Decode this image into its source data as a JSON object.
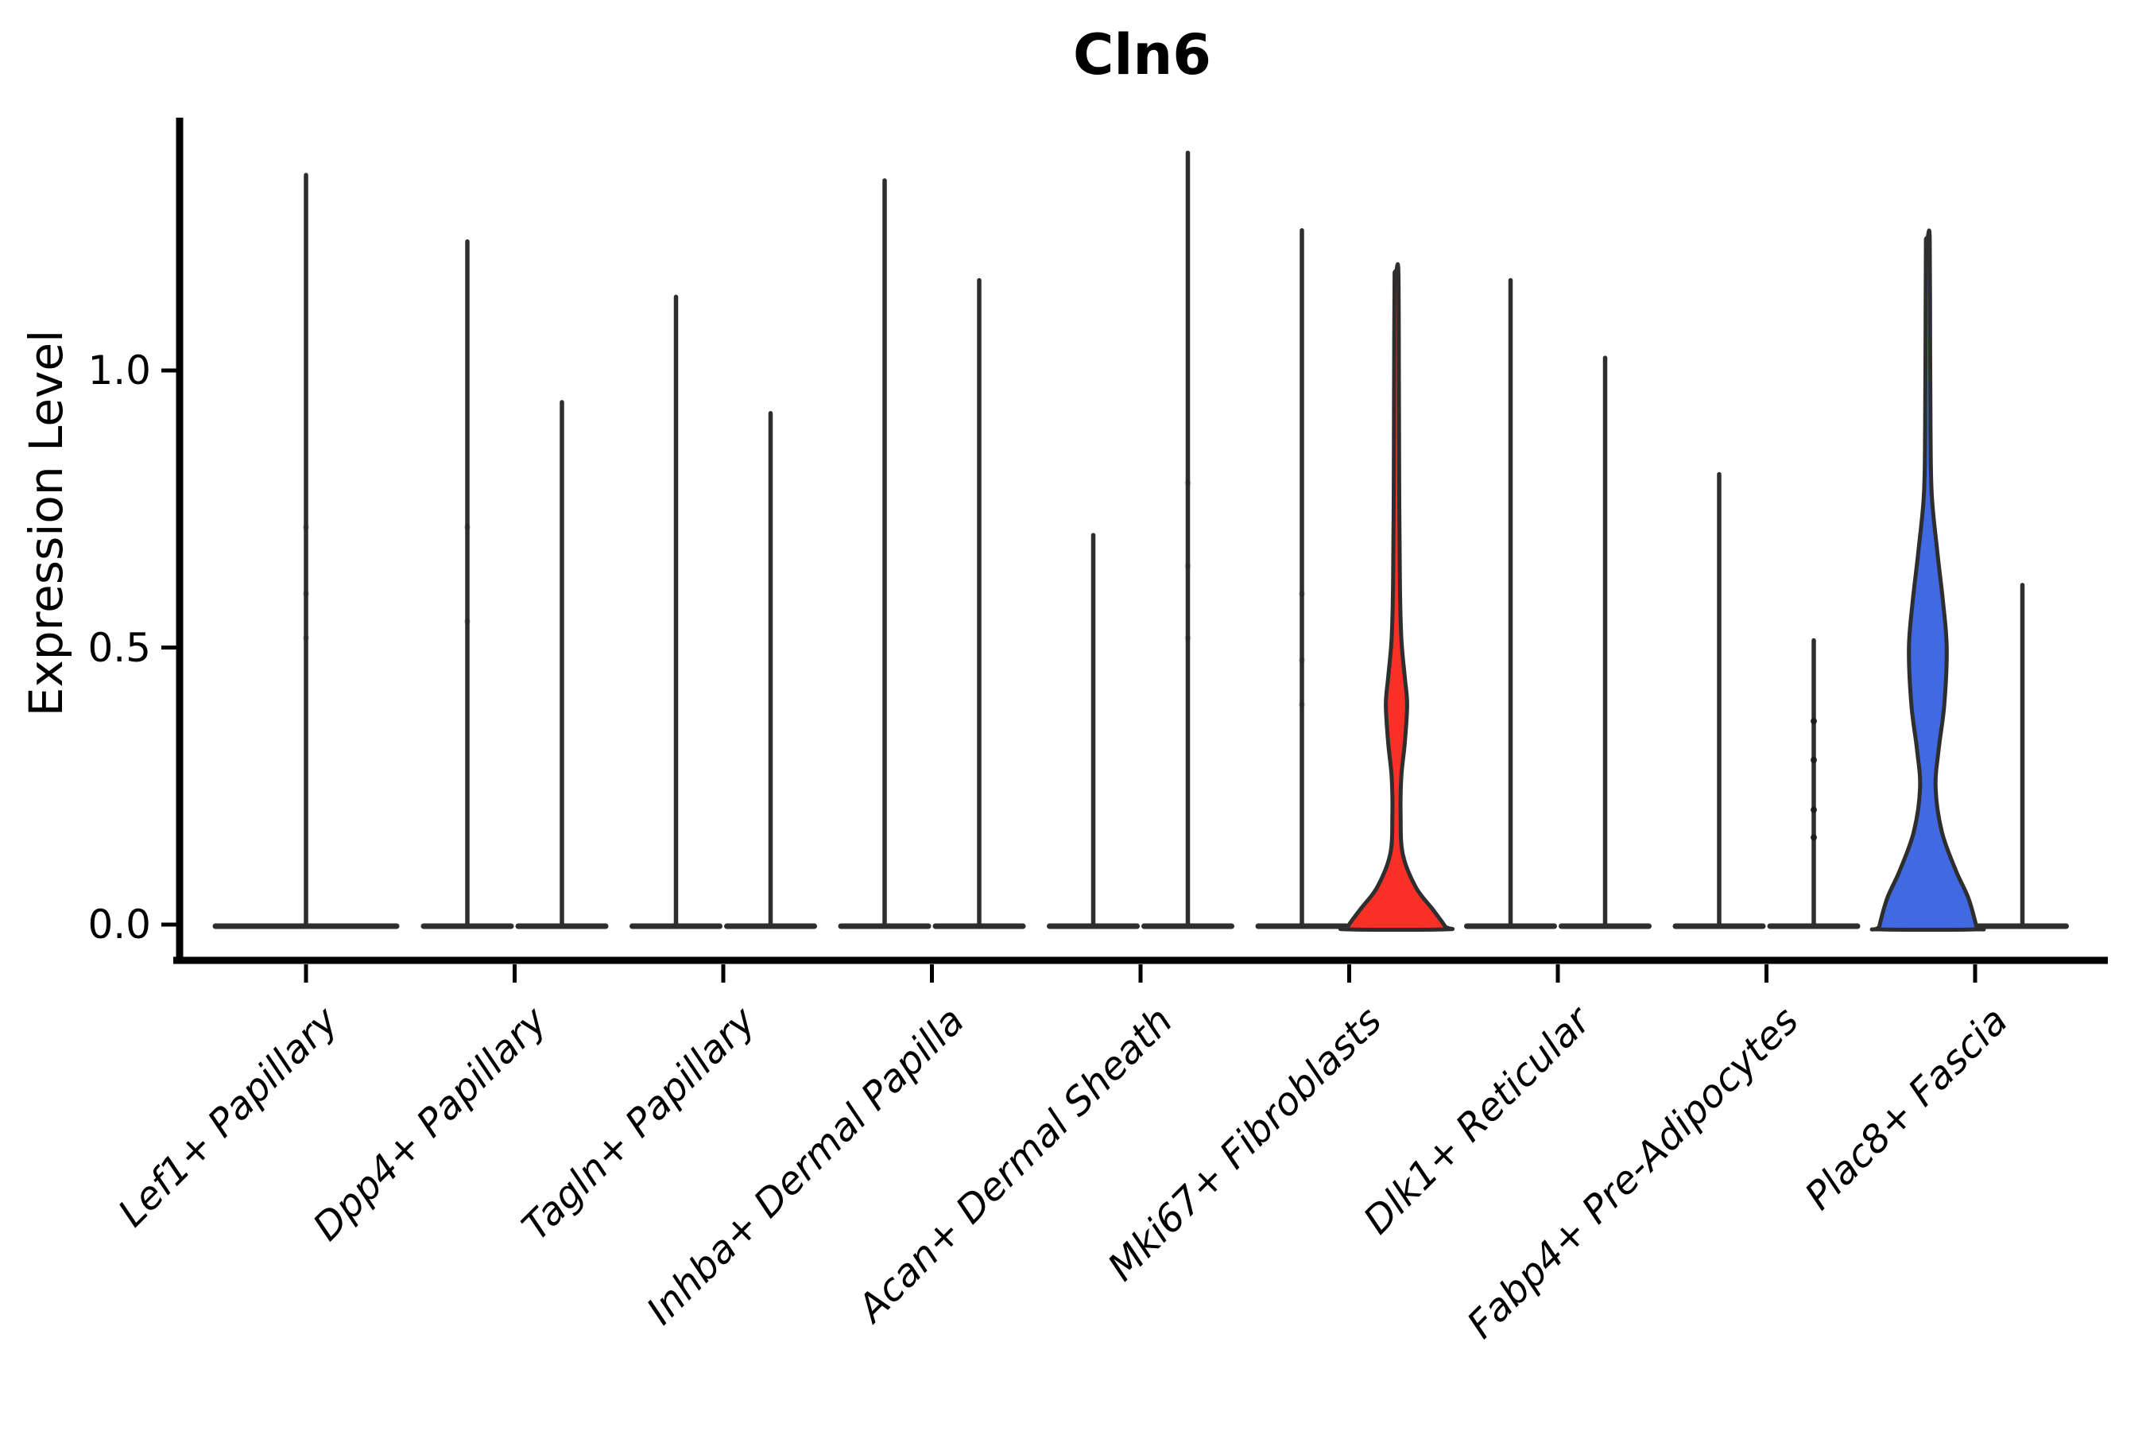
{
  "title": "Cln6",
  "axes": {
    "ylabel": "Expression Level",
    "ytick_labels": [
      "0.0",
      "0.5",
      "1.0"
    ],
    "ytick_values": [
      0.0,
      0.5,
      1.0
    ]
  },
  "colors": {
    "red_fill": "#F93026",
    "blue_fill": "#4169E1",
    "violin_stroke": "#2E2E2E",
    "axis_color": "#000000",
    "background": "#ffffff"
  },
  "chart_data": {
    "type": "violin",
    "title": "Cln6",
    "xlabel": "",
    "ylabel": "Expression Level",
    "ylim": [
      -0.06,
      1.46
    ],
    "yticks": [
      0.0,
      0.5,
      1.0
    ],
    "grid": false,
    "legend": "none",
    "categories": [
      "Lef1+ Papillary",
      "Dpp4+ Papillary",
      "Tagln+ Papillary",
      "Inhba+ Dermal Papilla",
      "Acan+ Dermal Sheath",
      "Mki67+ Fibroblasts",
      "Dlk1+ Reticular",
      "Fabp4+ Pre-Adipocytes",
      "Plac8+ Fascia"
    ],
    "description": "Split violin plot; most violins collapse to a flat base at 0 with a thin density spike to the max expression. Two violins have visible filled bodies: Mki67+ Fibroblasts (right, red) and Plac8+ Fascia (left, blue).",
    "groups": [
      {
        "category": "Lef1+ Papillary",
        "violins": [
          {
            "position": "center",
            "style": "spike",
            "max_expression": 1.36,
            "dots": [
              0.72,
              0.6,
              0.52
            ],
            "dot_opacity": 0.25
          }
        ]
      },
      {
        "category": "Dpp4+ Papillary",
        "violins": [
          {
            "position": "left",
            "style": "spike",
            "max_expression": 1.24,
            "dots": [
              0.72,
              0.55
            ],
            "dot_opacity": 0.22
          },
          {
            "position": "right",
            "style": "spike",
            "max_expression": 0.95
          }
        ]
      },
      {
        "category": "Tagln+ Papillary",
        "violins": [
          {
            "position": "left",
            "style": "spike",
            "max_expression": 1.14
          },
          {
            "position": "right",
            "style": "spike",
            "max_expression": 0.93
          }
        ]
      },
      {
        "category": "Inhba+ Dermal Papilla",
        "violins": [
          {
            "position": "left",
            "style": "spike",
            "max_expression": 1.35
          },
          {
            "position": "right",
            "style": "spike",
            "max_expression": 1.17
          }
        ]
      },
      {
        "category": "Acan+ Dermal Sheath",
        "violins": [
          {
            "position": "left",
            "style": "spike",
            "max_expression": 0.71
          },
          {
            "position": "right",
            "style": "spike",
            "max_expression": 1.4,
            "dots": [
              0.8,
              0.65,
              0.52
            ],
            "dot_opacity": 0.22
          }
        ]
      },
      {
        "category": "Mki67+ Fibroblasts",
        "violins": [
          {
            "position": "left",
            "style": "spike",
            "max_expression": 1.26,
            "dots": [
              0.6,
              0.48,
              0.4
            ],
            "dot_opacity": 0.22
          },
          {
            "position": "right",
            "style": "shaped",
            "max_expression": 1.18,
            "fill": "#F93026",
            "profile": [
              [
                1.18,
                0.04
              ],
              [
                1.0,
                0.05
              ],
              [
                0.8,
                0.055
              ],
              [
                0.62,
                0.07
              ],
              [
                0.52,
                0.1
              ],
              [
                0.45,
                0.17
              ],
              [
                0.4,
                0.22
              ],
              [
                0.33,
                0.17
              ],
              [
                0.27,
                0.1
              ],
              [
                0.2,
                0.085
              ],
              [
                0.13,
                0.13
              ],
              [
                0.07,
                0.4
              ],
              [
                0.03,
                0.75
              ],
              [
                0.0,
                1.0
              ]
            ]
          }
        ]
      },
      {
        "category": "Dlk1+ Reticular",
        "violins": [
          {
            "position": "left",
            "style": "spike",
            "max_expression": 1.17
          },
          {
            "position": "right",
            "style": "spike",
            "max_expression": 1.03
          }
        ]
      },
      {
        "category": "Fabp4+ Pre-Adipocytes",
        "violins": [
          {
            "position": "left",
            "style": "spike",
            "max_expression": 0.82
          },
          {
            "position": "right",
            "style": "spike",
            "max_expression": 0.52,
            "dots": [
              0.37,
              0.3,
              0.21,
              0.16
            ],
            "dot_opacity": 0.9
          }
        ]
      },
      {
        "category": "Plac8+ Fascia",
        "violins": [
          {
            "position": "left",
            "style": "shaped",
            "max_expression": 1.24,
            "fill": "#4169E1",
            "profile": [
              [
                1.24,
                0.04
              ],
              [
                1.05,
                0.048
              ],
              [
                0.9,
                0.056
              ],
              [
                0.78,
                0.08
              ],
              [
                0.68,
                0.19
              ],
              [
                0.58,
                0.32
              ],
              [
                0.5,
                0.39
              ],
              [
                0.4,
                0.34
              ],
              [
                0.32,
                0.225
              ],
              [
                0.25,
                0.16
              ],
              [
                0.17,
                0.29
              ],
              [
                0.1,
                0.58
              ],
              [
                0.05,
                0.84
              ],
              [
                0.0,
                1.0
              ]
            ]
          },
          {
            "position": "right",
            "style": "spike",
            "max_expression": 0.62
          }
        ]
      }
    ]
  }
}
